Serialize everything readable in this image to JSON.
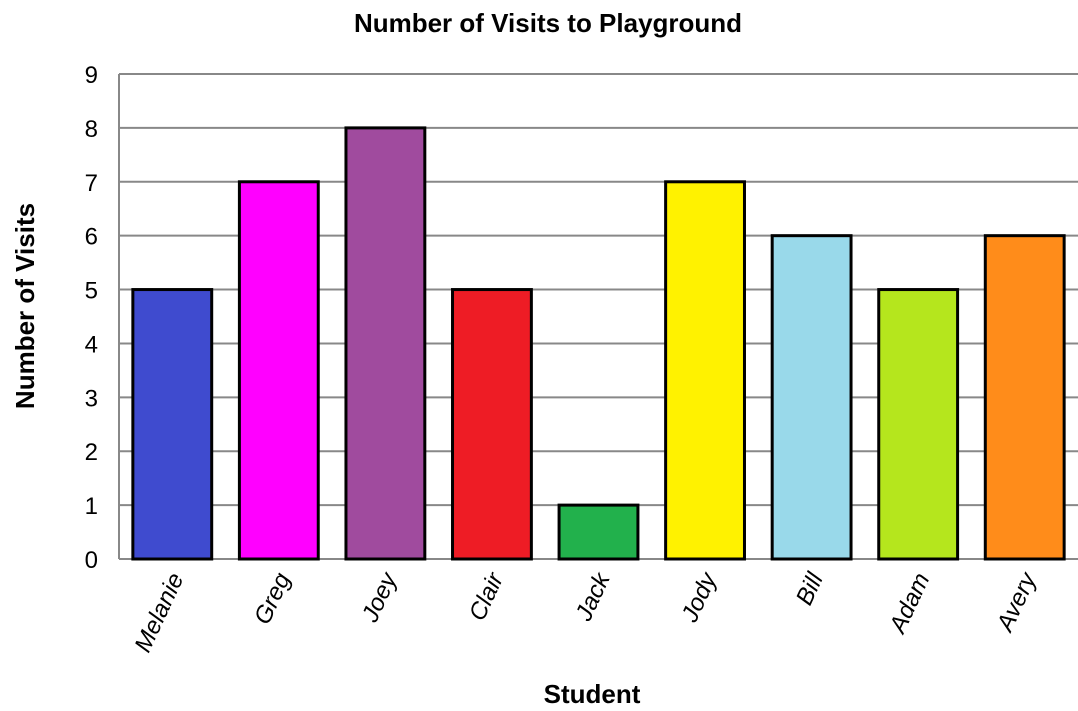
{
  "chart_data": {
    "type": "bar",
    "title": "Number of Visits to Playground",
    "xlabel": "Student",
    "ylabel": "Number of Visits",
    "categories": [
      "Melanie",
      "Greg",
      "Joey",
      "Clair",
      "Jack",
      "Jody",
      "Bill",
      "Adam",
      "Avery"
    ],
    "values": [
      5,
      7,
      8,
      5,
      1,
      7,
      6,
      5,
      6
    ],
    "bar_colors": [
      "#3f4bcf",
      "#ff00ff",
      "#a04b9e",
      "#ee1c25",
      "#22b14c",
      "#fff200",
      "#99d9ea",
      "#b5e61d",
      "#ff8c1a"
    ],
    "ylim": [
      0,
      9
    ],
    "yticks": [
      0,
      1,
      2,
      3,
      4,
      5,
      6,
      7,
      8,
      9
    ],
    "grid": true,
    "legend": "none"
  }
}
